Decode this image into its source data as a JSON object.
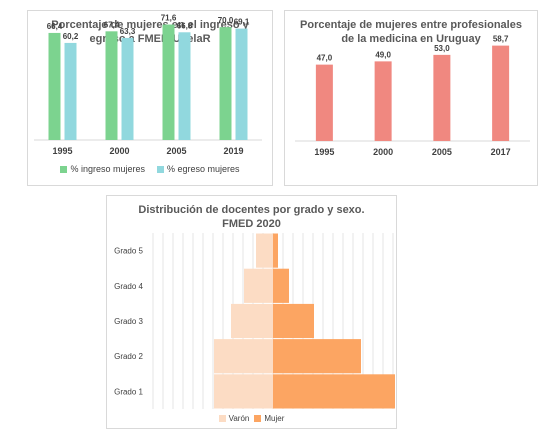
{
  "chart_data": [
    {
      "type": "bar",
      "title": "Porcentaje de mujeres en el ingreso y\negreso a FMED-UdelaR",
      "categories": [
        "1995",
        "2000",
        "2005",
        "2019"
      ],
      "series": [
        {
          "name": "% ingreso mujeres",
          "color": "#7cd38f",
          "values": [
            66.4,
            67.4,
            71.6,
            70.0
          ],
          "labels": [
            "66,4",
            "67,4",
            "71,6",
            "70,0"
          ]
        },
        {
          "name": "% egreso mujeres",
          "color": "#91d8de",
          "values": [
            60.2,
            63.3,
            66.8,
            69.1
          ],
          "labels": [
            "60,2",
            "63,3",
            "66,8",
            "69,1"
          ]
        }
      ],
      "ylim": [
        0,
        80
      ],
      "grid": false,
      "legend": "bottom"
    },
    {
      "type": "bar",
      "title": "Porcentaje de mujeres entre profesionales\nde la medicina en Uruguay",
      "categories": [
        "1995",
        "2000",
        "2005",
        "2017"
      ],
      "series": [
        {
          "color": "#f08880",
          "values": [
            47.0,
            49.0,
            53.0,
            58.7
          ],
          "labels": [
            "47,0",
            "49,0",
            "53,0",
            "58,7"
          ]
        }
      ],
      "ylim": [
        0,
        80
      ],
      "grid": false
    },
    {
      "type": "bar",
      "orientation": "horizontal-pyramid",
      "title": "Distribución de docentes por grado y sexo.\nFMED 2020",
      "categories": [
        "Grado 5",
        "Grado 4",
        "Grado 3",
        "Grado 2",
        "Grado 1"
      ],
      "series": [
        {
          "name": "Varón",
          "color": "#fcdcc4",
          "values": [
            17,
            29,
            42,
            59,
            59
          ]
        },
        {
          "name": "Mujer",
          "color": "#fca562",
          "values": [
            5,
            16,
            41,
            88,
            122
          ]
        }
      ],
      "grid": true,
      "legend": "bottom"
    }
  ]
}
